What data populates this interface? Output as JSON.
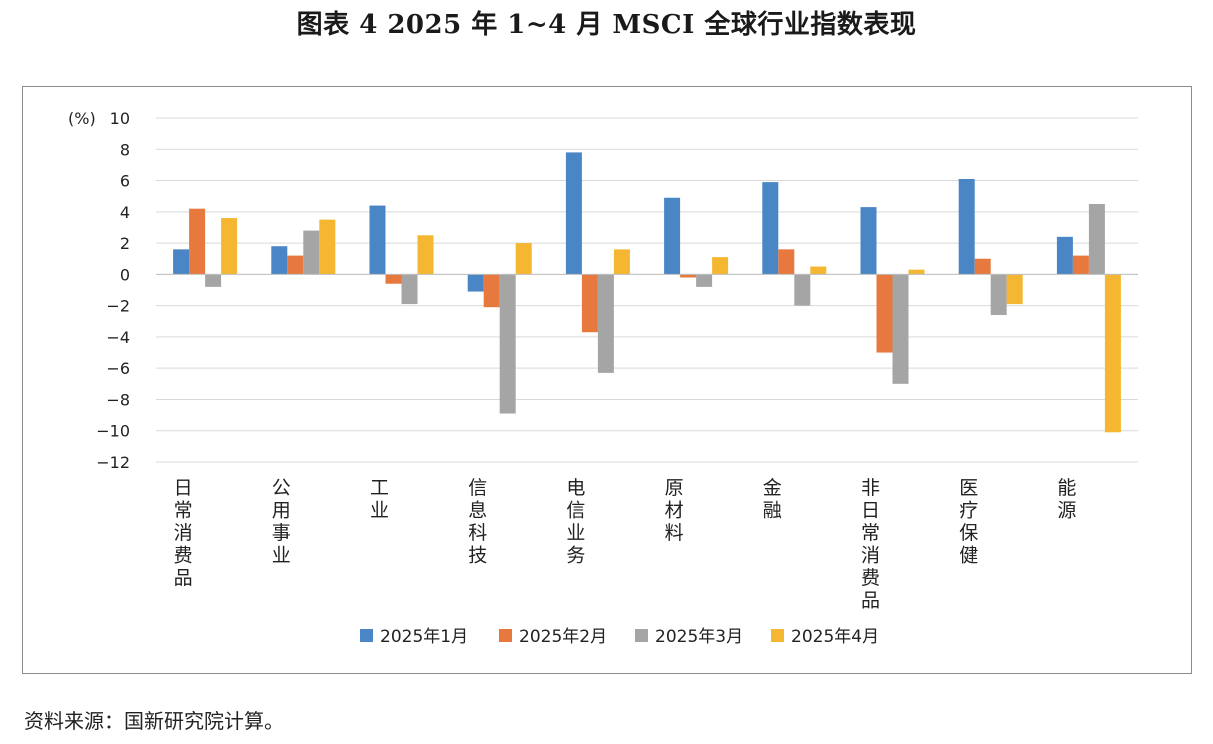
{
  "title": "图表 4  2025 年 1~4 月 MSCI 全球行业指数表现",
  "source": "资料来源：国新研究院计算。",
  "chart_data": {
    "type": "bar",
    "unit_label": "(%)",
    "ylim": [
      -12,
      10
    ],
    "yticks": [
      10,
      8,
      6,
      4,
      2,
      0,
      -2,
      -4,
      -6,
      -8,
      -10,
      -12
    ],
    "grid": true,
    "legend_position": "bottom",
    "categories": [
      "日常消费品",
      "公用事业",
      "工业",
      "信息科技",
      "电信业务",
      "原材料",
      "金融",
      "非日常消费品",
      "医疗保健",
      "能源"
    ],
    "series": [
      {
        "name": "2025年1月",
        "color": "#4a86c5",
        "values": [
          1.6,
          1.8,
          4.4,
          -1.1,
          7.8,
          4.9,
          5.9,
          4.3,
          6.1,
          2.4
        ]
      },
      {
        "name": "2025年2月",
        "color": "#e7793f",
        "values": [
          4.2,
          1.2,
          -0.6,
          -2.1,
          -3.7,
          -0.2,
          1.6,
          -5.0,
          1.0,
          1.2
        ]
      },
      {
        "name": "2025年3月",
        "color": "#a5a5a5",
        "values": [
          -0.8,
          2.8,
          -1.9,
          -8.9,
          -6.3,
          -0.8,
          -2.0,
          -7.0,
          -2.6,
          4.5
        ]
      },
      {
        "name": "2025年4月",
        "color": "#f5b731",
        "values": [
          3.6,
          3.5,
          2.5,
          2.0,
          1.6,
          1.1,
          0.5,
          0.3,
          -1.9,
          -10.1
        ]
      }
    ]
  }
}
